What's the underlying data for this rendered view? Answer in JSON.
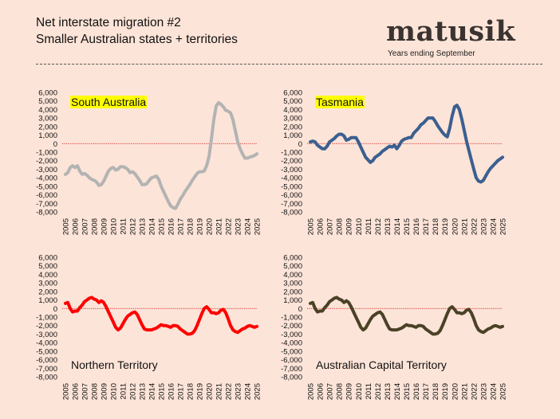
{
  "header": {
    "title": "Net interstate migration #2",
    "subtitle": "Smaller Australian states + territories",
    "brand": "matusik",
    "brand_note": "Years ending September"
  },
  "colors": {
    "background": "#fde4d8",
    "zero_line": "#cc0000",
    "highlight": "#ffff00"
  },
  "chart_data": [
    {
      "type": "line",
      "title": "South Australia",
      "title_highlighted": true,
      "color": "#b3b3b3",
      "x_ticks": [
        "2005",
        "2006",
        "2007",
        "2008",
        "2009",
        "2010",
        "2011",
        "2012",
        "2013",
        "2014",
        "2015",
        "2016",
        "2017",
        "2018",
        "2019",
        "2020",
        "2021",
        "2022",
        "2023",
        "2024",
        "2025"
      ],
      "y_ticks": [
        "6,000",
        "5,000",
        "4,000",
        "3,000",
        "2,000",
        "1,000",
        "0",
        "-1,000",
        "-2,000",
        "-3,000",
        "-4,000",
        "-5,000",
        "-6,000",
        "-7,000",
        "-8,000"
      ],
      "ylim": [
        -8000,
        6000
      ],
      "x": [
        2005.0,
        2005.25,
        2005.5,
        2005.75,
        2006.0,
        2006.25,
        2006.5,
        2006.75,
        2007.0,
        2007.25,
        2007.5,
        2007.75,
        2008.0,
        2008.25,
        2008.5,
        2008.75,
        2009.0,
        2009.25,
        2009.5,
        2009.75,
        2010.0,
        2010.25,
        2010.5,
        2010.75,
        2011.0,
        2011.25,
        2011.5,
        2011.75,
        2012.0,
        2012.25,
        2012.5,
        2012.75,
        2013.0,
        2013.25,
        2013.5,
        2013.75,
        2014.0,
        2014.25,
        2014.5,
        2014.75,
        2015.0,
        2015.25,
        2015.5,
        2015.75,
        2016.0,
        2016.25,
        2016.5,
        2016.75,
        2017.0,
        2017.25,
        2017.5,
        2017.75,
        2018.0,
        2018.25,
        2018.5,
        2018.75,
        2019.0,
        2019.25,
        2019.5,
        2019.75,
        2020.0,
        2020.25,
        2020.5,
        2020.75,
        2021.0,
        2021.25,
        2021.5,
        2021.75,
        2022.0,
        2022.25,
        2022.5,
        2022.75,
        2023.0,
        2023.25,
        2023.5,
        2023.75,
        2024.0,
        2024.25,
        2024.5,
        2024.75,
        2025.0
      ],
      "y": [
        -3600,
        -3400,
        -2800,
        -2600,
        -2800,
        -2600,
        -3200,
        -3600,
        -3500,
        -3700,
        -4000,
        -4200,
        -4300,
        -4500,
        -4900,
        -4800,
        -4400,
        -3800,
        -3200,
        -2900,
        -2800,
        -3100,
        -3000,
        -2700,
        -2700,
        -2800,
        -3000,
        -3400,
        -3300,
        -3500,
        -3900,
        -4300,
        -4800,
        -4800,
        -4700,
        -4300,
        -4000,
        -3900,
        -3800,
        -4200,
        -5000,
        -5600,
        -6200,
        -6800,
        -7300,
        -7500,
        -7600,
        -7100,
        -6500,
        -6100,
        -5600,
        -5200,
        -4800,
        -4300,
        -3900,
        -3500,
        -3300,
        -3300,
        -3200,
        -2600,
        -1500,
        500,
        2800,
        4400,
        4800,
        4600,
        4300,
        3900,
        3800,
        3600,
        2800,
        1500,
        200,
        -600,
        -1200,
        -1700,
        -1700,
        -1600,
        -1500,
        -1400,
        -1200
      ]
    },
    {
      "type": "line",
      "title": "Tasmania",
      "title_highlighted": true,
      "color": "#3b5f8f",
      "x_ticks": [
        "2005",
        "2006",
        "2007",
        "2008",
        "2009",
        "2010",
        "2011",
        "2012",
        "2013",
        "2014",
        "2015",
        "2016",
        "2017",
        "2018",
        "2019",
        "2020",
        "2021",
        "2022",
        "2023",
        "2024",
        "2025"
      ],
      "y_ticks": [
        "6,000",
        "5,000",
        "4,000",
        "3,000",
        "2,000",
        "1,000",
        "0",
        "-1,000",
        "-2,000",
        "-3,000",
        "-4,000",
        "-5,000",
        "-6,000",
        "-7,000",
        "-8,000"
      ],
      "ylim": [
        -8000,
        6000
      ],
      "x": [
        2005.0,
        2005.25,
        2005.5,
        2005.75,
        2006.0,
        2006.25,
        2006.5,
        2006.75,
        2007.0,
        2007.25,
        2007.5,
        2007.75,
        2008.0,
        2008.25,
        2008.5,
        2008.75,
        2009.0,
        2009.25,
        2009.5,
        2009.75,
        2010.0,
        2010.25,
        2010.5,
        2010.75,
        2011.0,
        2011.25,
        2011.5,
        2011.75,
        2012.0,
        2012.25,
        2012.5,
        2012.75,
        2013.0,
        2013.25,
        2013.5,
        2013.75,
        2014.0,
        2014.25,
        2014.5,
        2014.75,
        2015.0,
        2015.25,
        2015.5,
        2015.75,
        2016.0,
        2016.25,
        2016.5,
        2016.75,
        2017.0,
        2017.25,
        2017.5,
        2017.75,
        2018.0,
        2018.25,
        2018.5,
        2018.75,
        2019.0,
        2019.25,
        2019.5,
        2019.75,
        2020.0,
        2020.25,
        2020.5,
        2020.75,
        2021.0,
        2021.25,
        2021.5,
        2021.75,
        2022.0,
        2022.25,
        2022.5,
        2022.75,
        2023.0,
        2023.25,
        2023.5,
        2023.75,
        2024.0,
        2024.25,
        2024.5,
        2024.75,
        2025.0
      ],
      "y": [
        200,
        300,
        200,
        -200,
        -400,
        -600,
        -600,
        -300,
        200,
        400,
        600,
        900,
        1100,
        1100,
        900,
        400,
        500,
        700,
        700,
        700,
        200,
        -400,
        -1000,
        -1600,
        -1900,
        -2200,
        -2000,
        -1600,
        -1400,
        -1200,
        -900,
        -700,
        -500,
        -300,
        -400,
        -200,
        -600,
        -200,
        300,
        500,
        600,
        700,
        700,
        1200,
        1500,
        1800,
        2200,
        2400,
        2700,
        3000,
        3000,
        3000,
        2600,
        2100,
        1700,
        1300,
        1000,
        800,
        1800,
        3200,
        4300,
        4500,
        4000,
        2900,
        1600,
        300,
        -800,
        -1900,
        -3000,
        -4000,
        -4400,
        -4500,
        -4300,
        -3800,
        -3300,
        -2900,
        -2600,
        -2300,
        -2000,
        -1800,
        -1600
      ]
    },
    {
      "type": "line",
      "title": "Northern Territory",
      "title_highlighted": false,
      "color": "#ff0000",
      "x_ticks": [
        "2005",
        "2006",
        "2007",
        "2008",
        "2009",
        "2010",
        "2011",
        "2012",
        "2013",
        "2014",
        "2015",
        "2016",
        "2017",
        "2018",
        "2019",
        "2020",
        "2021",
        "2022",
        "2023",
        "2024",
        "2025"
      ],
      "y_ticks": [
        "6,000",
        "5,000",
        "4,000",
        "3,000",
        "2,000",
        "1,000",
        "0",
        "-1,000",
        "-2,000",
        "-3,000",
        "-4,000",
        "-5,000",
        "-6,000",
        "-7,000",
        "-8,000"
      ],
      "ylim": [
        -8000,
        6000
      ],
      "x": [
        2005.0,
        2005.25,
        2005.5,
        2005.75,
        2006.0,
        2006.25,
        2006.5,
        2006.75,
        2007.0,
        2007.25,
        2007.5,
        2007.75,
        2008.0,
        2008.25,
        2008.5,
        2008.75,
        2009.0,
        2009.25,
        2009.5,
        2009.75,
        2010.0,
        2010.25,
        2010.5,
        2010.75,
        2011.0,
        2011.25,
        2011.5,
        2011.75,
        2012.0,
        2012.25,
        2012.5,
        2012.75,
        2013.0,
        2013.25,
        2013.5,
        2013.75,
        2014.0,
        2014.25,
        2014.5,
        2014.75,
        2015.0,
        2015.25,
        2015.5,
        2015.75,
        2016.0,
        2016.25,
        2016.5,
        2016.75,
        2017.0,
        2017.25,
        2017.5,
        2017.75,
        2018.0,
        2018.25,
        2018.5,
        2018.75,
        2019.0,
        2019.25,
        2019.5,
        2019.75,
        2020.0,
        2020.25,
        2020.5,
        2020.75,
        2021.0,
        2021.25,
        2021.5,
        2021.75,
        2022.0,
        2022.25,
        2022.5,
        2022.75,
        2023.0,
        2023.25,
        2023.5,
        2023.75,
        2024.0,
        2024.25,
        2024.5,
        2024.75,
        2025.0
      ],
      "y": [
        600,
        700,
        0,
        -400,
        -300,
        -300,
        100,
        400,
        800,
        1000,
        1200,
        1300,
        1100,
        1000,
        700,
        900,
        700,
        200,
        -400,
        -1000,
        -1600,
        -2200,
        -2500,
        -2300,
        -1800,
        -1300,
        -900,
        -700,
        -500,
        -400,
        -700,
        -1300,
        -1900,
        -2400,
        -2500,
        -2500,
        -2500,
        -2400,
        -2300,
        -2100,
        -1900,
        -2000,
        -2000,
        -2100,
        -2200,
        -2000,
        -2000,
        -2100,
        -2400,
        -2600,
        -2800,
        -3000,
        -3000,
        -2900,
        -2600,
        -2000,
        -1300,
        -600,
        0,
        200,
        -100,
        -500,
        -500,
        -600,
        -500,
        -200,
        -100,
        -500,
        -1200,
        -2000,
        -2500,
        -2700,
        -2800,
        -2600,
        -2400,
        -2300,
        -2100,
        -2000,
        -2100,
        -2200,
        -2100
      ]
    },
    {
      "type": "line",
      "title": "Australian Capital Territory",
      "title_highlighted": false,
      "color": "#4a4226",
      "x_ticks": [
        "2005",
        "2006",
        "2007",
        "2008",
        "2009",
        "2010",
        "2011",
        "2012",
        "2013",
        "2014",
        "2015",
        "2016",
        "2017",
        "2018",
        "2019",
        "2020",
        "2021",
        "2022",
        "2023",
        "2024",
        "2025"
      ],
      "y_ticks": [
        "6,000",
        "5,000",
        "4,000",
        "3,000",
        "2,000",
        "1,000",
        "0",
        "-1,000",
        "-2,000",
        "-3,000",
        "-4,000",
        "-5,000",
        "-6,000",
        "-7,000",
        "-8,000"
      ],
      "ylim": [
        -8000,
        6000
      ],
      "x": [
        2005.0,
        2005.25,
        2005.5,
        2005.75,
        2006.0,
        2006.25,
        2006.5,
        2006.75,
        2007.0,
        2007.25,
        2007.5,
        2007.75,
        2008.0,
        2008.25,
        2008.5,
        2008.75,
        2009.0,
        2009.25,
        2009.5,
        2009.75,
        2010.0,
        2010.25,
        2010.5,
        2010.75,
        2011.0,
        2011.25,
        2011.5,
        2011.75,
        2012.0,
        2012.25,
        2012.5,
        2012.75,
        2013.0,
        2013.25,
        2013.5,
        2013.75,
        2014.0,
        2014.25,
        2014.5,
        2014.75,
        2015.0,
        2015.25,
        2015.5,
        2015.75,
        2016.0,
        2016.25,
        2016.5,
        2016.75,
        2017.0,
        2017.25,
        2017.5,
        2017.75,
        2018.0,
        2018.25,
        2018.5,
        2018.75,
        2019.0,
        2019.25,
        2019.5,
        2019.75,
        2020.0,
        2020.25,
        2020.5,
        2020.75,
        2021.0,
        2021.25,
        2021.5,
        2021.75,
        2022.0,
        2022.25,
        2022.5,
        2022.75,
        2023.0,
        2023.25,
        2023.5,
        2023.75,
        2024.0,
        2024.25,
        2024.5,
        2024.75,
        2025.0
      ],
      "y": [
        600,
        700,
        0,
        -400,
        -300,
        -300,
        100,
        400,
        800,
        1000,
        1200,
        1300,
        1100,
        1000,
        700,
        900,
        700,
        200,
        -400,
        -1000,
        -1600,
        -2200,
        -2500,
        -2300,
        -1800,
        -1300,
        -900,
        -700,
        -500,
        -400,
        -700,
        -1300,
        -1900,
        -2400,
        -2500,
        -2500,
        -2500,
        -2400,
        -2300,
        -2100,
        -1900,
        -2000,
        -2000,
        -2100,
        -2200,
        -2000,
        -2000,
        -2100,
        -2400,
        -2600,
        -2800,
        -3000,
        -3000,
        -2900,
        -2600,
        -2000,
        -1300,
        -600,
        0,
        200,
        -100,
        -500,
        -500,
        -600,
        -500,
        -200,
        -100,
        -500,
        -1200,
        -2000,
        -2500,
        -2700,
        -2800,
        -2600,
        -2400,
        -2300,
        -2100,
        -2000,
        -2100,
        -2200,
        -2100
      ]
    }
  ]
}
